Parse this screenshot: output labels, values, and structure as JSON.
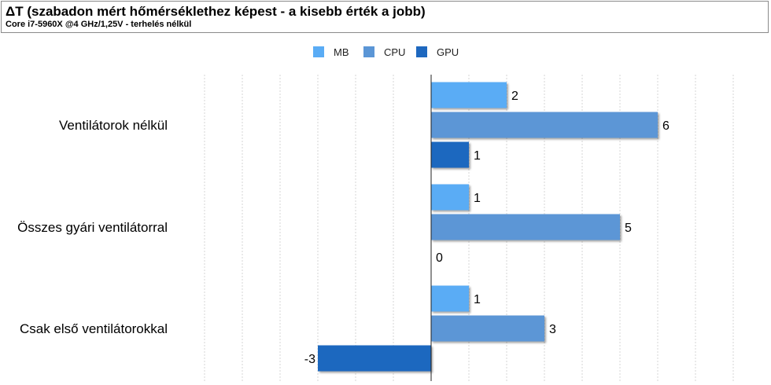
{
  "chart_data": {
    "type": "bar",
    "orientation": "horizontal",
    "title": "ΔT (szabadon mért hőmérséklethez képest - a kisebb érték a jobb)",
    "subtitle": "Core i7-5960X @4 GHz/1,25V - terhelés nélkül",
    "categories": [
      "Ventilátorok nélkül",
      "Összes gyári ventilátorral",
      "Csak első ventilátorokkal"
    ],
    "series": [
      {
        "name": "MB",
        "color": "#5aacf5",
        "values": [
          2,
          1,
          1
        ]
      },
      {
        "name": "CPU",
        "color": "#5b96d6",
        "values": [
          6,
          5,
          3
        ]
      },
      {
        "name": "GPU",
        "color": "#1e68bf",
        "values": [
          1,
          0,
          -3
        ]
      }
    ],
    "xlim": [
      -11.5,
      9
    ],
    "grid": true,
    "legend": "top"
  }
}
